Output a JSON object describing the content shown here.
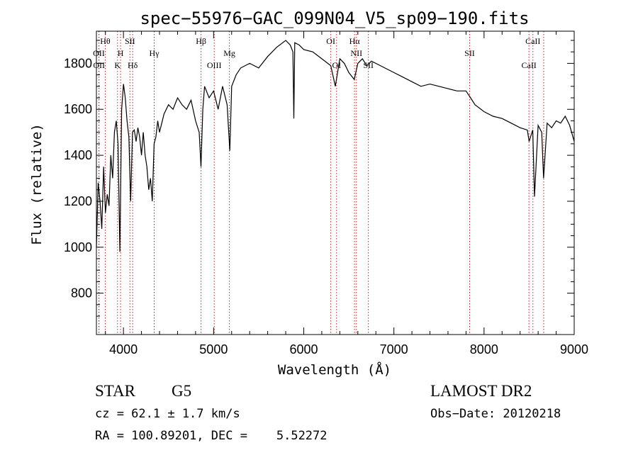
{
  "chart_data": {
    "type": "line",
    "title": "spec−55976−GAC_099N04_V5_sp09−190.fits",
    "xlabel": "Wavelength (Å)",
    "ylabel": "Flux (relative)",
    "xlim": [
      3700,
      9000
    ],
    "ylim": [
      620,
      1940
    ],
    "xticks": [
      4000,
      5000,
      6000,
      7000,
      8000,
      9000
    ],
    "yticks": [
      800,
      1000,
      1200,
      1400,
      1600,
      1800
    ],
    "grid": false,
    "series": [
      {
        "x": [
          3700,
          3720,
          3740,
          3760,
          3780,
          3800,
          3820,
          3840,
          3860,
          3880,
          3900,
          3920,
          3940,
          3960,
          3980,
          4000,
          4020,
          4040,
          4060,
          4080,
          4100,
          4120,
          4140,
          4160,
          4180,
          4200,
          4220,
          4240,
          4260,
          4280,
          4300,
          4320,
          4340,
          4360,
          4380,
          4400,
          4450,
          4500,
          4550,
          4600,
          4650,
          4700,
          4750,
          4800,
          4840,
          4860,
          4880,
          4900,
          4950,
          5000,
          5050,
          5100,
          5150,
          5180,
          5200,
          5250,
          5300,
          5400,
          5500,
          5600,
          5700,
          5800,
          5850,
          5880,
          5890,
          5900,
          5950,
          6000,
          6100,
          6200,
          6300,
          6350,
          6400,
          6450,
          6500,
          6560,
          6600,
          6650,
          6700,
          6750,
          6800,
          6900,
          7000,
          7100,
          7200,
          7300,
          7400,
          7500,
          7600,
          7700,
          7800,
          7850,
          7900,
          8000,
          8100,
          8200,
          8300,
          8400,
          8480,
          8500,
          8540,
          8560,
          8600,
          8640,
          8660,
          8700,
          8750,
          8800,
          8850,
          8900,
          8950,
          9000
        ],
        "values": [
          1000,
          1280,
          1200,
          1080,
          1350,
          1150,
          1230,
          1180,
          1400,
          1300,
          1500,
          1550,
          1450,
          980,
          1600,
          1710,
          1650,
          1550,
          1480,
          1200,
          1500,
          1510,
          1460,
          1520,
          1480,
          1400,
          1500,
          1400,
          1350,
          1250,
          1300,
          1200,
          1450,
          1480,
          1550,
          1500,
          1580,
          1620,
          1600,
          1650,
          1620,
          1600,
          1640,
          1550,
          1500,
          1350,
          1600,
          1700,
          1650,
          1680,
          1600,
          1700,
          1620,
          1420,
          1700,
          1750,
          1780,
          1800,
          1780,
          1830,
          1870,
          1900,
          1880,
          1850,
          1560,
          1890,
          1880,
          1860,
          1850,
          1820,
          1790,
          1700,
          1820,
          1800,
          1760,
          1730,
          1800,
          1820,
          1790,
          1810,
          1800,
          1780,
          1760,
          1740,
          1720,
          1700,
          1710,
          1700,
          1690,
          1680,
          1680,
          1650,
          1620,
          1590,
          1570,
          1560,
          1540,
          1520,
          1510,
          1460,
          1510,
          1220,
          1530,
          1500,
          1300,
          1540,
          1520,
          1550,
          1540,
          1570,
          1530,
          1460
        ]
      }
    ],
    "line_markers": [
      {
        "label": "Hθ",
        "x": 3798,
        "row": 1
      },
      {
        "label": "OII",
        "x": 3727,
        "row": 2
      },
      {
        "label": "OII",
        "x": 3729,
        "row": 3
      },
      {
        "label": "SII",
        "x": 4072,
        "row": 1
      },
      {
        "label": "H",
        "x": 3968,
        "row": 2
      },
      {
        "label": "K",
        "x": 3934,
        "row": 3
      },
      {
        "label": "Hδ",
        "x": 4102,
        "row": 3
      },
      {
        "label": "Hγ",
        "x": 4341,
        "row": 2
      },
      {
        "label": "Hβ",
        "x": 4861,
        "row": 1
      },
      {
        "label": "Mg",
        "x": 5175,
        "row": 2
      },
      {
        "label": "OIII",
        "x": 5007,
        "row": 3
      },
      {
        "label": "OI",
        "x": 6300,
        "row": 1
      },
      {
        "label": "Hα",
        "x": 6563,
        "row": 1
      },
      {
        "label": "NII",
        "x": 6584,
        "row": 2
      },
      {
        "label": "OI",
        "x": 6364,
        "row": 3
      },
      {
        "label": "SII",
        "x": 6717,
        "row": 3
      },
      {
        "label": "SII",
        "x": 7840,
        "row": 2
      },
      {
        "label": "CaII",
        "x": 8542,
        "row": 1
      },
      {
        "label": "CaII",
        "x": 8498,
        "row": 3
      },
      {
        "label": "",
        "x": 8662,
        "row": 0
      }
    ]
  },
  "info": {
    "class": "STAR",
    "subclass": "G5",
    "survey": "LAMOST DR2",
    "cz": "cz = 62.1 ± 1.7 km/s",
    "obs_date": "Obs−Date: 20120218",
    "coords": "RA = 100.89201, DEC =    5.52272"
  },
  "colors": {
    "line": "#000000",
    "marker": "#b22222",
    "axis": "#000000"
  }
}
